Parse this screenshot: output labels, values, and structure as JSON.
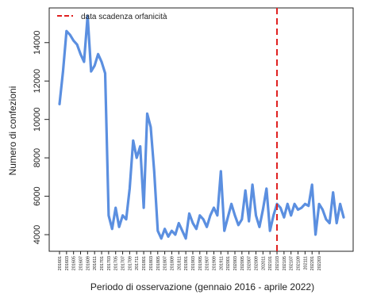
{
  "chart_data": {
    "type": "line",
    "xlabel": "Periodo di osservazione (gennaio 2016 - aprile 2022)",
    "ylabel": "Numero di confezioni",
    "ylim": [
      3300,
      15600
    ],
    "yticks": [
      4000,
      6000,
      8000,
      10000,
      12000,
      14000
    ],
    "x_tick_labels": [
      "201601",
      "201603",
      "201605",
      "201607",
      "201609",
      "201611",
      "201701",
      "201703",
      "201705",
      "201707",
      "201709",
      "201711",
      "201801",
      "201803",
      "201805",
      "201807",
      "201809",
      "201811",
      "201901",
      "201903",
      "201905",
      "201907",
      "201909",
      "201911",
      "202001",
      "202003",
      "202005",
      "202007",
      "202009",
      "202011",
      "202101",
      "202103",
      "202105",
      "202107",
      "202109",
      "202111",
      "202201",
      "202203"
    ],
    "series": [
      {
        "color": "#5b8fe0",
        "values": [
          10800,
          12500,
          14600,
          14400,
          14100,
          13900,
          13400,
          13000,
          15400,
          12500,
          12800,
          13400,
          13000,
          12400,
          5000,
          4300,
          5400,
          4400,
          5000,
          4800,
          6400,
          8900,
          8000,
          8600,
          5400,
          10300,
          9600,
          7300,
          4200,
          3800,
          4300,
          3900,
          4200,
          4000,
          4600,
          4200,
          3800,
          5100,
          4600,
          4300,
          5000,
          4800,
          4400,
          5000,
          5400,
          5000,
          7300,
          4200,
          4900,
          5600,
          5000,
          4500,
          4800,
          6300,
          4700,
          6600,
          5000,
          4400,
          5300,
          6400,
          4200,
          5000,
          5600,
          5400,
          4900,
          5600,
          5000,
          5600,
          5300,
          5400,
          5600,
          5500,
          6600,
          4000,
          5600,
          5300,
          4800,
          4600,
          6200,
          4600,
          5600,
          4900
        ]
      }
    ],
    "reference_line": {
      "label": "data scadenza orfanicità",
      "x_index": 62,
      "color": "#e02020",
      "style": "dashed"
    },
    "legend_position": "top-left",
    "grid": false
  }
}
